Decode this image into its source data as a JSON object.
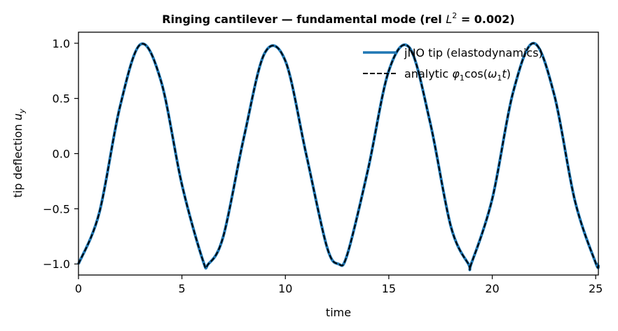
{
  "chart_data": {
    "type": "line",
    "title_main": "Ringing cantilever — fundamental mode (rel ",
    "title_sym": "L",
    "title_sup": "2",
    "title_end": " = 0.002)",
    "xlabel": "time",
    "ylabel_main": "tip deflection ",
    "ylabel_sym": "u",
    "ylabel_sub": "y",
    "xlim": [
      0,
      25.13
    ],
    "ylim": [
      -1.1,
      1.1
    ],
    "xticks": [
      0,
      5,
      10,
      15,
      20,
      25
    ],
    "xtick_labels": [
      "0",
      "5",
      "10",
      "15",
      "20",
      "25"
    ],
    "yticks": [
      1.0,
      0.5,
      0.0,
      -0.5,
      -1.0
    ],
    "ytick_labels": [
      "1.0",
      "0.5",
      "0.0",
      "−0.5",
      "−1.0"
    ],
    "grid": false,
    "legend_position": "top-right",
    "series": [
      {
        "name": "jNO tip (elastodynamics)",
        "color": "#1f77b4",
        "style": "solid",
        "x": [
          0,
          1,
          2,
          3,
          4,
          5,
          6,
          6.28,
          7,
          8,
          9,
          10,
          11,
          12,
          12.57,
          13,
          14,
          15,
          16,
          17,
          18,
          18.85,
          19,
          20,
          21,
          22,
          23,
          24,
          25,
          25.13
        ],
        "y": [
          -1.0,
          -0.54,
          0.42,
          0.99,
          0.65,
          -0.28,
          -0.96,
          -1.0,
          -0.75,
          0.15,
          0.91,
          0.84,
          0.0,
          -0.84,
          -1.0,
          -0.91,
          -0.14,
          0.75,
          0.96,
          0.28,
          -0.66,
          -1.0,
          -0.99,
          -0.41,
          0.55,
          1.0,
          0.53,
          -0.43,
          -0.99,
          -1.0
        ]
      },
      {
        "name_parts": {
          "a": "analytic ",
          "phi": "φ",
          "phi_sub": "1",
          "b": "cos(",
          "omega": "ω",
          "omega_sub": "1",
          "t": "t",
          "c": ")"
        },
        "color": "#000000",
        "style": "dashed",
        "x": [
          0,
          1,
          2,
          3,
          4,
          5,
          6,
          6.28,
          7,
          8,
          9,
          10,
          11,
          12,
          12.57,
          13,
          14,
          15,
          16,
          17,
          18,
          18.85,
          19,
          20,
          21,
          22,
          23,
          24,
          25,
          25.13
        ],
        "y": [
          -1.0,
          -0.54,
          0.42,
          0.99,
          0.65,
          -0.28,
          -0.96,
          -1.0,
          -0.75,
          0.15,
          0.91,
          0.84,
          0.0,
          -0.84,
          -1.0,
          -0.91,
          -0.14,
          0.75,
          0.96,
          0.28,
          -0.66,
          -1.0,
          -0.99,
          -0.41,
          0.55,
          1.0,
          0.53,
          -0.43,
          -0.99,
          -1.0
        ]
      }
    ]
  }
}
